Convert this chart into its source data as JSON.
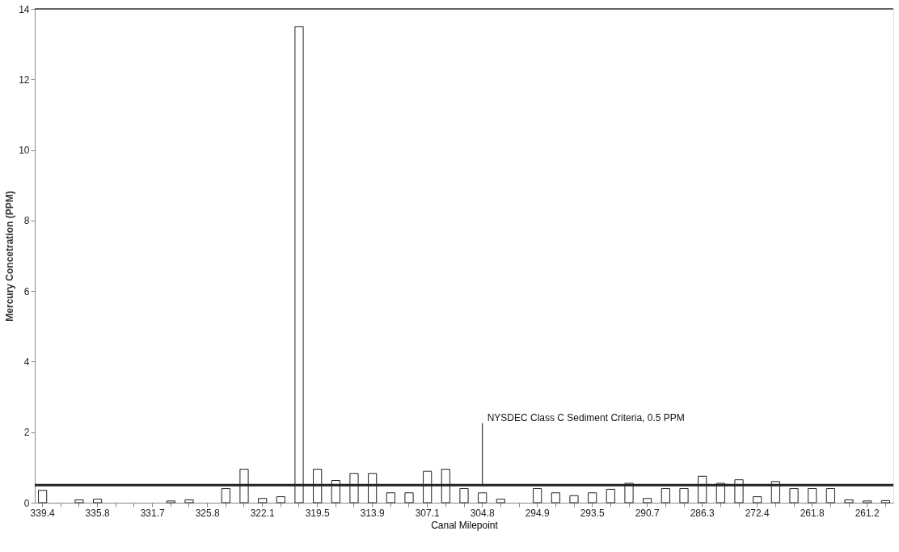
{
  "chart_data": {
    "type": "bar",
    "xlabel": "Canal Milepoint",
    "ylabel": "Mercury Concetration (PPM)",
    "categories": [
      "339.4",
      null,
      null,
      "335.8",
      null,
      null,
      "331.7",
      null,
      null,
      "325.8",
      null,
      null,
      "322.1",
      null,
      null,
      "319.5",
      null,
      null,
      "313.9",
      null,
      null,
      "307.1",
      null,
      null,
      "304.8",
      null,
      null,
      "294.9",
      null,
      null,
      "293.5",
      null,
      null,
      "290.7",
      null,
      null,
      "286.3",
      null,
      null,
      "272.4",
      null,
      null,
      "261.8",
      null,
      null,
      "261.2",
      null
    ],
    "values": [
      0.35,
      null,
      0.08,
      0.1,
      null,
      null,
      null,
      0.05,
      0.08,
      null,
      0.4,
      0.95,
      0.12,
      0.17,
      13.5,
      0.95,
      0.63,
      0.83,
      0.83,
      0.28,
      0.28,
      0.89,
      0.95,
      0.4,
      0.28,
      0.1,
      null,
      0.4,
      0.28,
      0.2,
      0.28,
      0.38,
      0.55,
      0.12,
      0.4,
      0.4,
      0.75,
      0.55,
      0.65,
      0.17,
      0.6,
      0.4,
      0.4,
      0.4,
      0.08,
      0.05,
      0.06
    ],
    "color": "#ffffff",
    "ylim": [
      0,
      14
    ],
    "yticks": [
      0,
      2,
      4,
      6,
      8,
      10,
      12,
      14
    ],
    "grid": false,
    "ref_lines": [
      {
        "axis": "y",
        "value": 0.5,
        "color": "#222222"
      }
    ],
    "annotations": [
      {
        "text": "NYSDEC Class C Sediment Criteria, 0.5 PPM",
        "x": "304.8",
        "y": 0.5
      }
    ]
  }
}
